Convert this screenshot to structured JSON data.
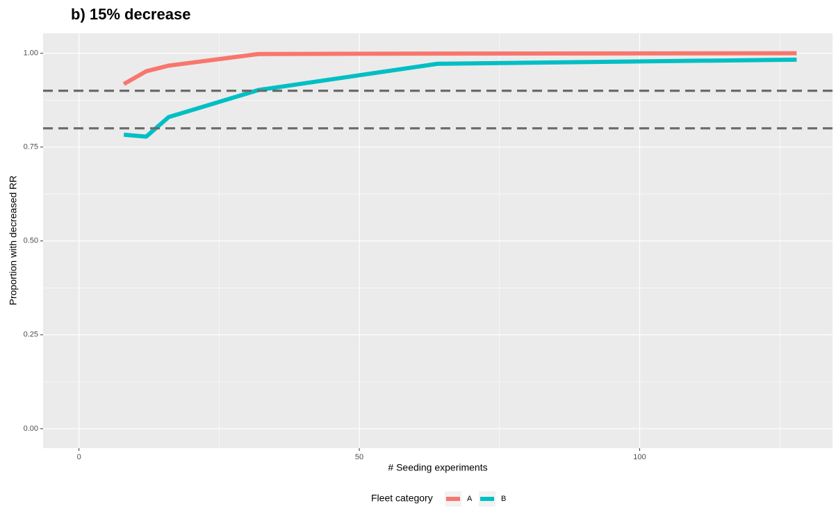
{
  "chart_data": {
    "type": "line",
    "title": "b) 15% decrease",
    "x_label": "# Seeding experiments",
    "y_label": "Proportion with decreased RR",
    "x": [
      8,
      12,
      16,
      32,
      64,
      128
    ],
    "series": [
      {
        "name": "A",
        "color": "#F8766D",
        "values": [
          0.918,
          0.952,
          0.967,
          0.998,
          0.999,
          1.0
        ]
      },
      {
        "name": "B",
        "color": "#00BFC4",
        "values": [
          0.783,
          0.778,
          0.83,
          0.902,
          0.972,
          0.983
        ]
      }
    ],
    "reference_lines": [
      0.9,
      0.8
    ],
    "xlim": [
      -6.4,
      134.4
    ],
    "xticks": [
      0,
      50,
      100
    ],
    "ylim": [
      -0.052,
      1.053
    ],
    "yticks": [
      {
        "value": 0,
        "label": "0.00"
      },
      {
        "value": 0.25,
        "label": "0.25"
      },
      {
        "value": 0.5,
        "label": "0.50"
      },
      {
        "value": 0.75,
        "label": "0.75"
      },
      {
        "value": 1,
        "label": "1.00"
      }
    ],
    "grid": true,
    "legend_title": "Fleet category",
    "legend_position": "bottom"
  }
}
